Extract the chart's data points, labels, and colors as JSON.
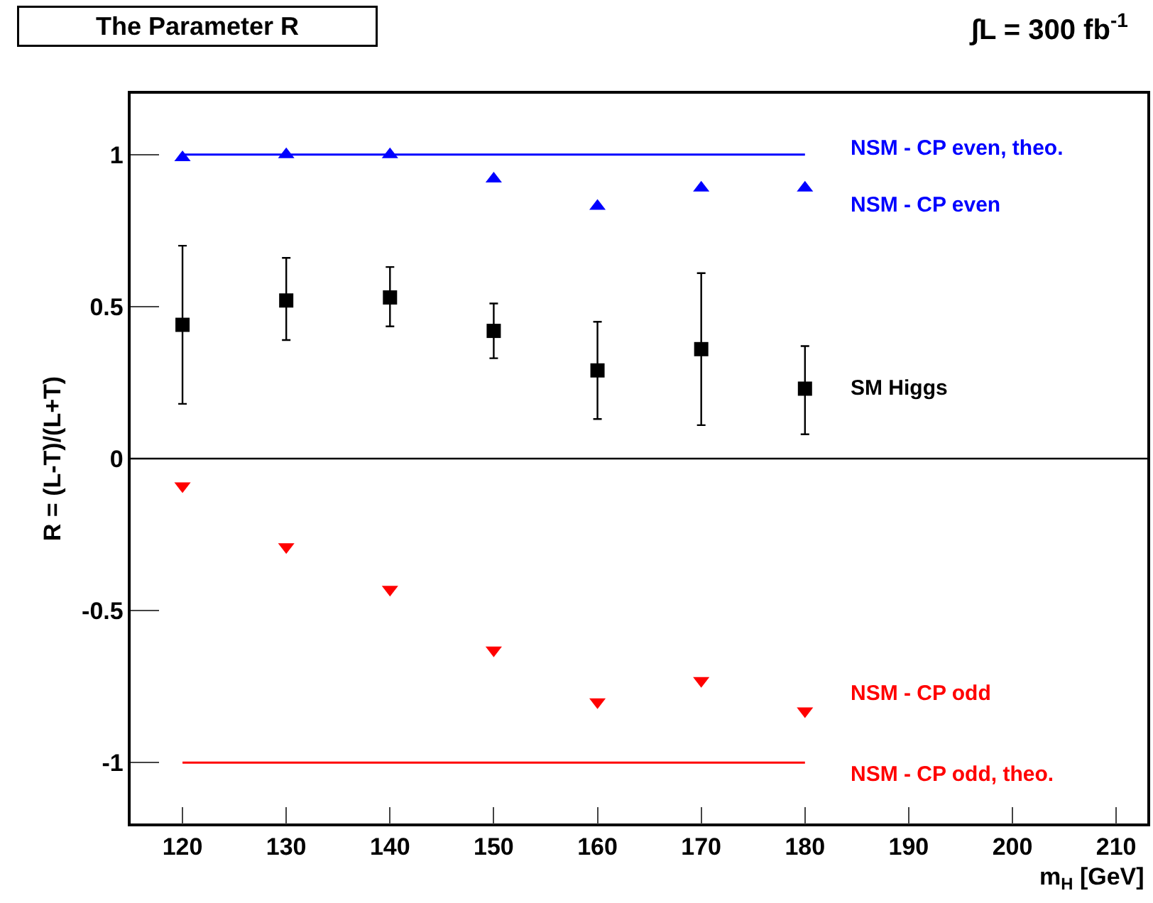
{
  "chart_data": {
    "type": "scatter",
    "title": "The Parameter R",
    "subtitle": "∫L = 300 fb$^{-1}$",
    "xlabel": "m$_{H}$ [GeV]",
    "ylabel": "R = (L-T)/(L+T)",
    "x": [
      120,
      130,
      140,
      150,
      160,
      170,
      180
    ],
    "series": [
      {
        "name": "NSM - CP even, theo.",
        "type": "line",
        "color": "#0000ff",
        "values": [
          1,
          1,
          1,
          1,
          1,
          1,
          1
        ],
        "marker": "none",
        "line_style": "solid"
      },
      {
        "name": "NSM - CP even",
        "color": "#0000ff",
        "marker": "triangle",
        "values": [
          0.99,
          1.0,
          1.0,
          0.92,
          0.83,
          0.89,
          0.89
        ]
      },
      {
        "name": "SM Higgs",
        "color": "#000000",
        "marker": "square",
        "values": [
          0.44,
          0.52,
          0.53,
          0.42,
          0.29,
          0.36,
          0.23
        ],
        "errors": [
          [
            0.18,
            0.7
          ],
          [
            0.39,
            0.66
          ],
          [
            0.435,
            0.63
          ],
          [
            0.33,
            0.51
          ],
          [
            0.13,
            0.45
          ],
          [
            0.11,
            0.61
          ],
          [
            0.08,
            0.37
          ]
        ]
      },
      {
        "name": "NSM - CP odd",
        "color": "#ff0000",
        "marker": "triangle-down",
        "values": [
          -0.09,
          -0.29,
          -0.43,
          -0.63,
          -0.8,
          -0.73,
          -0.83
        ]
      },
      {
        "name": "NSM - CP odd, theo.",
        "type": "line",
        "color": "#ff0000",
        "values": [
          -1,
          -1,
          -1,
          -1,
          -1,
          -1,
          -1
        ],
        "marker": "none",
        "line_style": "solid"
      }
    ],
    "ref_lines": [
      {
        "axis": "y",
        "value": 0,
        "color": "#000000"
      }
    ],
    "xlim": [
      115,
      213
    ],
    "xticks": [
      120,
      130,
      140,
      150,
      160,
      170,
      180,
      190,
      200,
      210
    ],
    "ylim": [
      -1.2,
      1.2
    ],
    "yticks": [
      {
        "value": -1,
        "label": "-1"
      },
      {
        "value": -0.5,
        "label": "-0.5"
      },
      0,
      {
        "value": 0.5,
        "label": "0.5"
      },
      1
    ],
    "legend": false
  }
}
